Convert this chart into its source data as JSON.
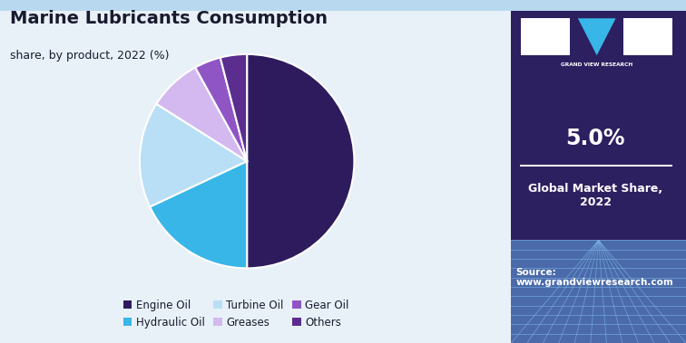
{
  "title": "Marine Lubricants Consumption",
  "subtitle": "share, by product, 2022 (%)",
  "labels": [
    "Engine Oil",
    "Hydraulic Oil",
    "Turbine Oil",
    "Greases",
    "Gear Oil",
    "Others"
  ],
  "sizes": [
    50,
    18,
    16,
    8,
    4,
    4
  ],
  "colors": [
    "#2d1b5e",
    "#38b6e8",
    "#b8dff5",
    "#d4b8f0",
    "#9055c5",
    "#5b2d8e"
  ],
  "startangle": 90,
  "background_color": "#e8f1f8",
  "sidebar_color": "#2d2060",
  "title_color": "#1a1a2e",
  "stat_value": "5.0%",
  "stat_label": "Global Market Share,\n2022",
  "source_text": "Source:\nwww.grandviewresearch.com",
  "grid_color_top": "#2d2060",
  "grid_color_bottom": "#5588cc"
}
